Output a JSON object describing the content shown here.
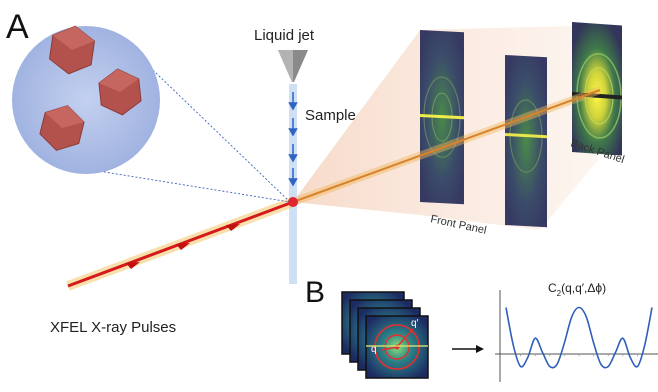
{
  "panels": {
    "a": "A",
    "b": "B"
  },
  "labels": {
    "liquid_jet": "Liquid jet",
    "sample": "Sample",
    "front_panel": "Front Panel",
    "back_panel": "Back Panel",
    "xfel": "XFEL X-ray Pulses",
    "c2_main": "C",
    "c2_sub": "2",
    "c2_args": "(q,q′,Δϕ)",
    "q": "q",
    "q_prime": "q′"
  },
  "colors": {
    "beam": "#d41a1a",
    "beam_glow": "#f4c76a",
    "cone": "#f7d7c4",
    "zoom_circle": "#a9b9e3",
    "crystal": "#b3524d",
    "jet": "#c8daf0",
    "detector": "#35385f",
    "ring": "#e2e064",
    "curve": "#2f5fb8"
  },
  "icons": [
    "nozzle-icon",
    "arrow-right-icon"
  ],
  "chart_data": {
    "type": "line",
    "title": "C2(q,q′,Δϕ)",
    "xlabel": "",
    "ylabel": "",
    "grid": false,
    "x": [
      0,
      0.05,
      0.1,
      0.15,
      0.2,
      0.25,
      0.3,
      0.35,
      0.4,
      0.45,
      0.5,
      0.55,
      0.6,
      0.65,
      0.7,
      0.75,
      0.8,
      0.85,
      0.9,
      0.95,
      1.0
    ],
    "y": [
      1.0,
      0.2,
      -0.25,
      -0.05,
      0.35,
      0.05,
      -0.25,
      -0.2,
      0.25,
      0.8,
      1.0,
      0.8,
      0.25,
      -0.2,
      -0.25,
      0.05,
      0.35,
      -0.05,
      -0.25,
      0.2,
      1.0
    ],
    "ylim": [
      -0.45,
      1.2
    ]
  }
}
